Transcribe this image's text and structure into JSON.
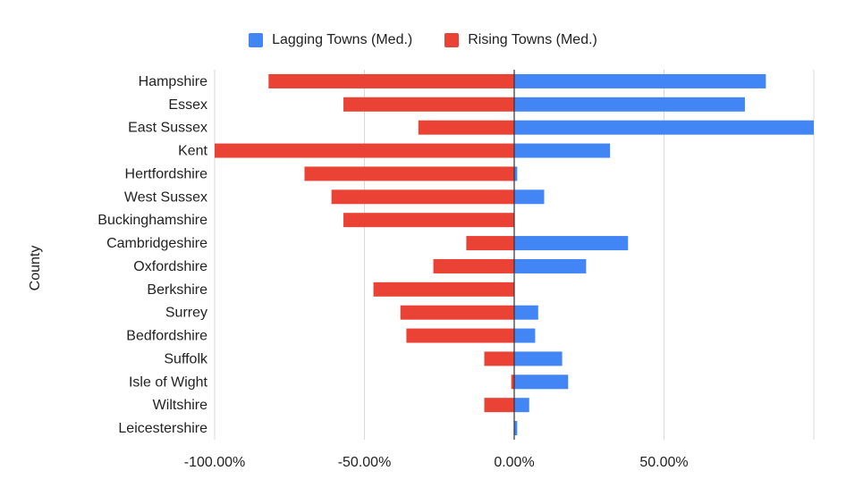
{
  "chart_data": {
    "type": "bar",
    "orientation": "horizontal",
    "title": "",
    "xlabel": "",
    "ylabel": "County",
    "categories": [
      "Hampshire",
      "Essex",
      "East Sussex",
      "Kent",
      "Hertfordshire",
      "West Sussex",
      "Buckinghamshire",
      "Cambridgeshire",
      "Oxfordshire",
      "Berkshire",
      "Surrey",
      "Bedfordshire",
      "Suffolk",
      "Isle of Wight",
      "Wiltshire",
      "Leicestershire"
    ],
    "series": [
      {
        "name": "Lagging Towns (Med.)",
        "color": "#4285f4",
        "values": [
          84,
          77,
          100,
          32,
          1,
          10,
          0,
          38,
          24,
          0,
          8,
          7,
          16,
          18,
          5,
          1
        ]
      },
      {
        "name": "Rising Towns (Med.)",
        "color": "#ea4335",
        "values": [
          -82,
          -57,
          -32,
          -100,
          -70,
          -61,
          -57,
          -16,
          -27,
          -47,
          -38,
          -36,
          -10,
          -1,
          -10,
          0
        ]
      }
    ],
    "xlim": [
      -100,
      100
    ],
    "xticks": [
      -100,
      -50,
      0,
      50
    ],
    "xtick_labels": [
      "-100.00%",
      "-50.00%",
      "0.00%",
      "50.00%"
    ],
    "grid": true,
    "legend_position": "top"
  }
}
